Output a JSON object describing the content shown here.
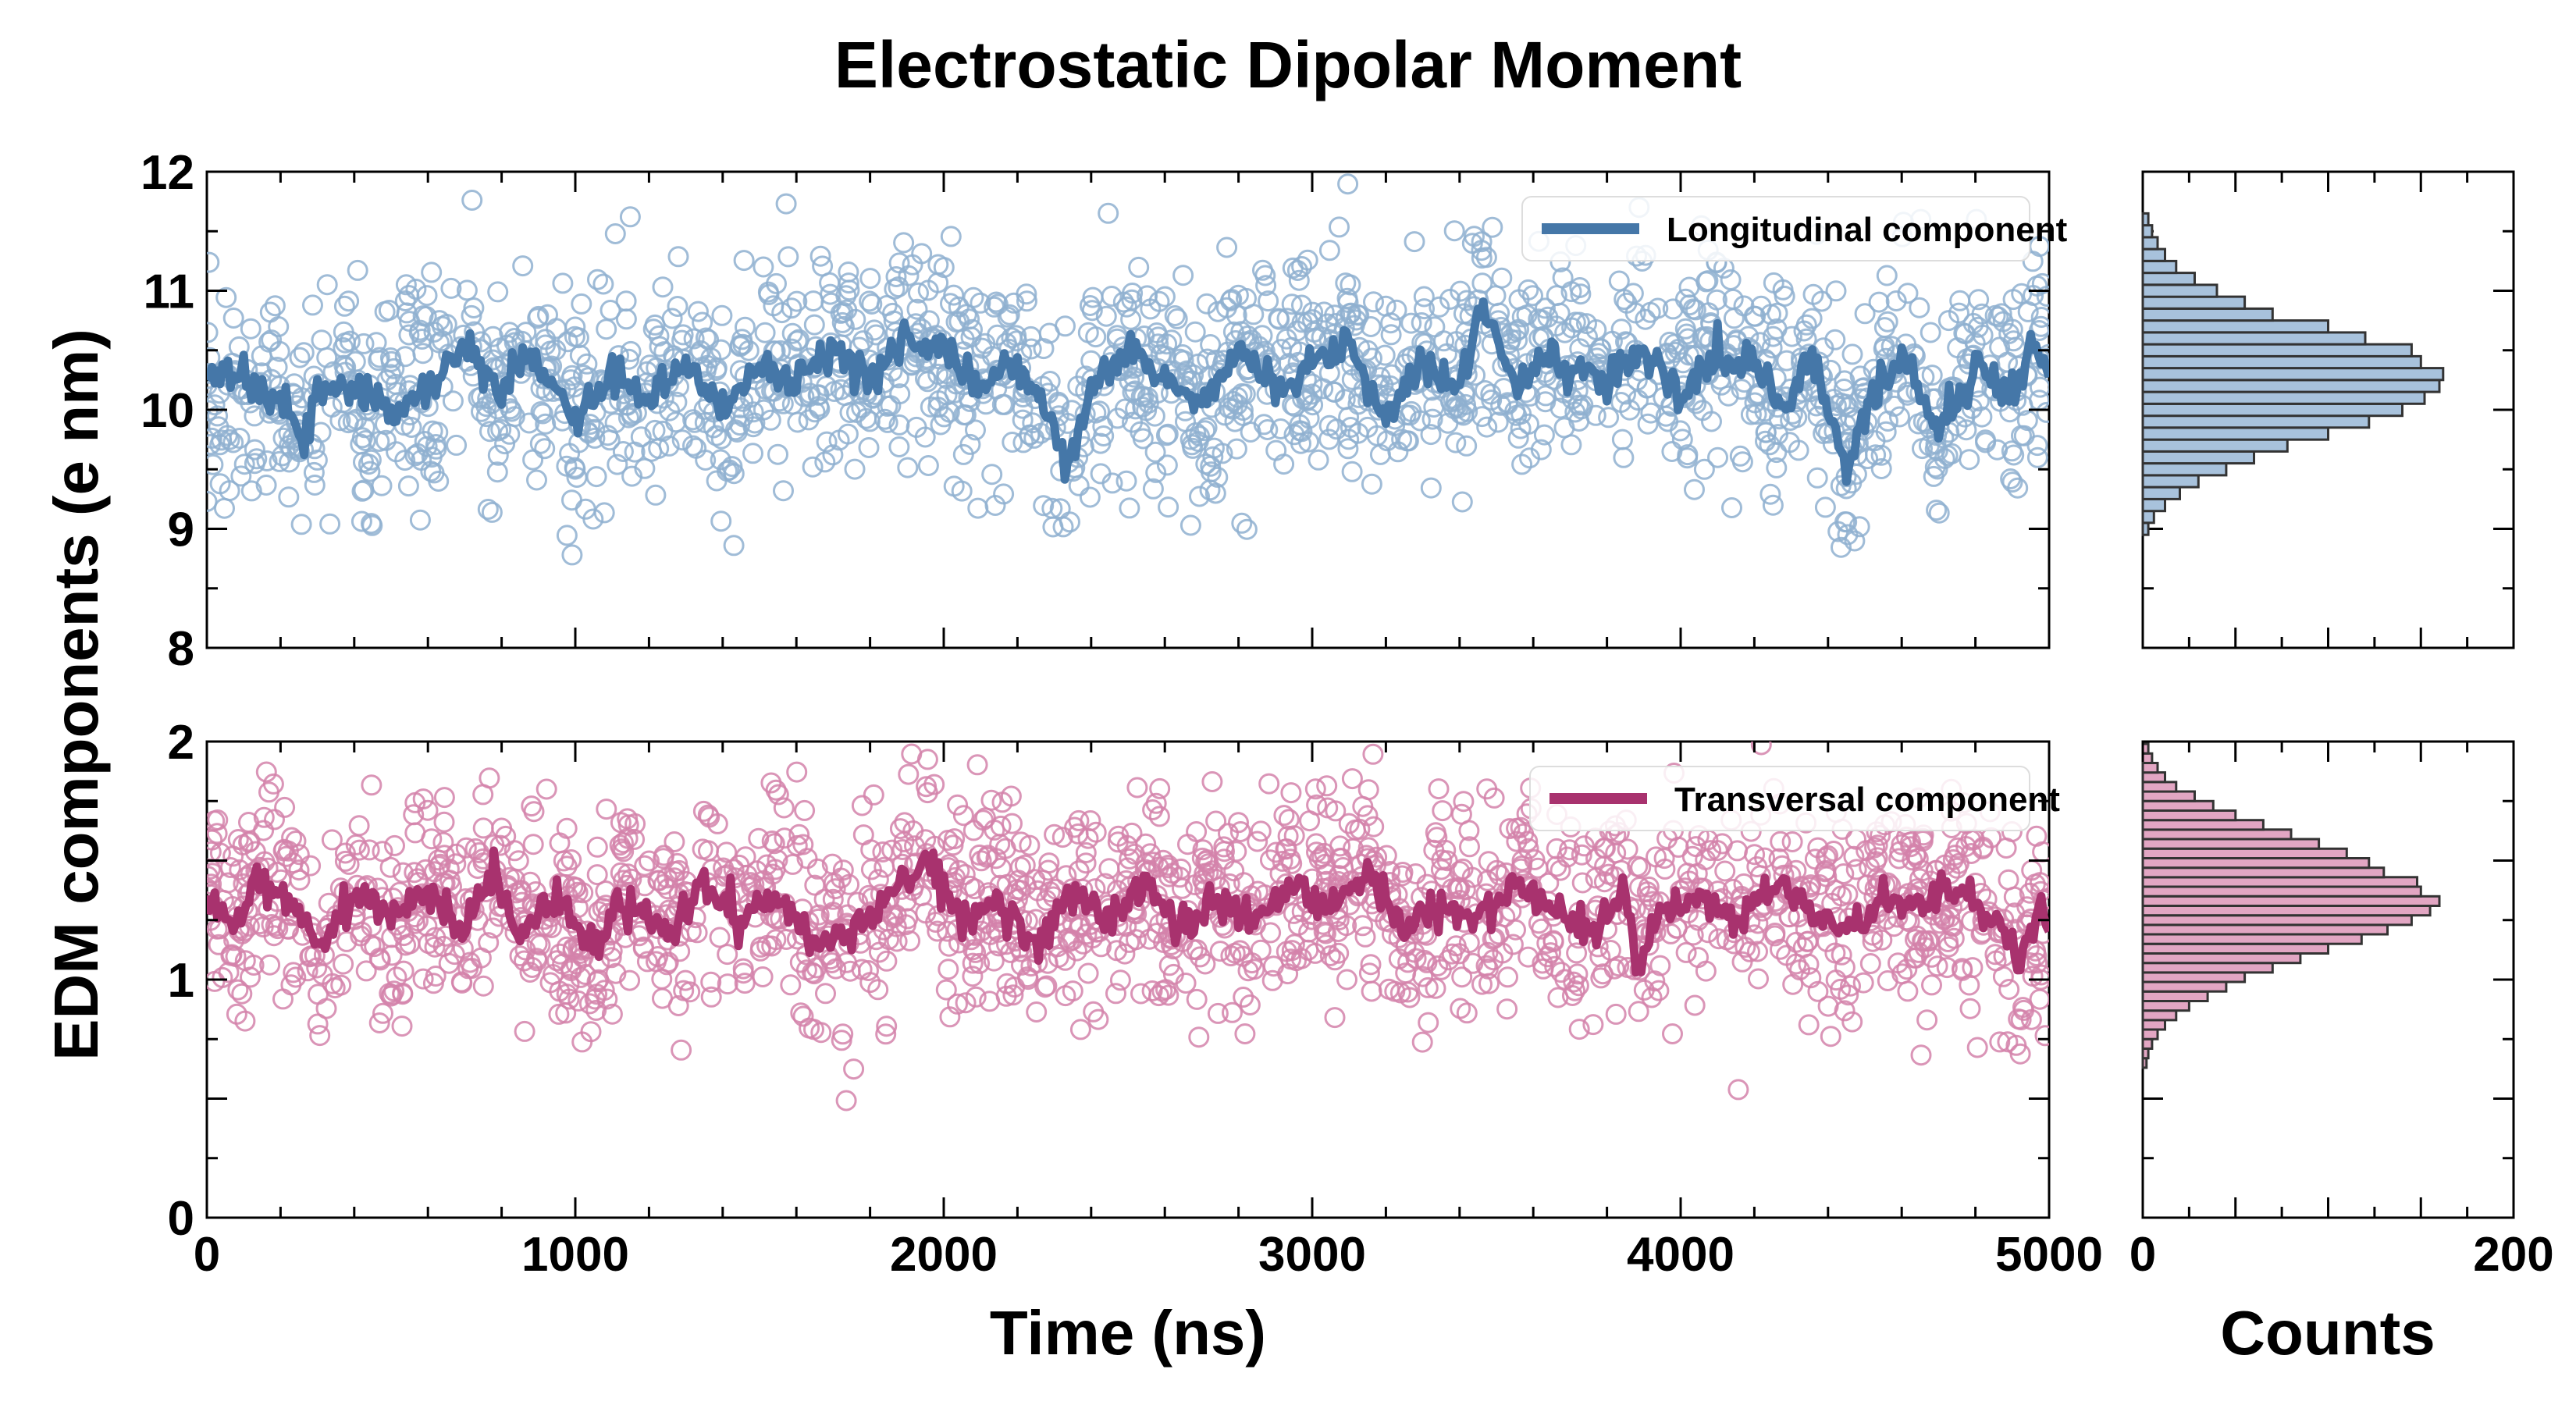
{
  "chart_data": {
    "title": "Electrostatic Dipolar Moment",
    "ylabel": "EDM components (e nm)",
    "xlabel": "Time (ns)",
    "hist_xlabel": "Counts",
    "xlim": [
      0,
      5000
    ],
    "xticks": [
      0,
      1000,
      2000,
      3000,
      4000,
      5000
    ],
    "hist_xlim": [
      0,
      200
    ],
    "hist_xticks": [
      0,
      200
    ],
    "panels": [
      {
        "id": "longitudinal",
        "type": "scatter+line",
        "ylim": [
          8,
          12
        ],
        "yticks": [
          8,
          9,
          10,
          11,
          12
        ],
        "legend": "Longitudinal component",
        "legend_position": "top-right",
        "color": "#4577a8",
        "marker_color": "#8fb0d0",
        "hist_fill": "#a8c2dc",
        "mean": 10.25,
        "scatter_sd": 0.45,
        "trend_points": [
          [
            0,
            10.25
          ],
          [
            100,
            10.3
          ],
          [
            200,
            10.05
          ],
          [
            260,
            9.75
          ],
          [
            300,
            10.1
          ],
          [
            400,
            10.25
          ],
          [
            500,
            9.95
          ],
          [
            600,
            10.2
          ],
          [
            700,
            10.55
          ],
          [
            800,
            10.1
          ],
          [
            860,
            10.5
          ],
          [
            950,
            10.2
          ],
          [
            1000,
            9.9
          ],
          [
            1100,
            10.3
          ],
          [
            1200,
            10.1
          ],
          [
            1300,
            10.4
          ],
          [
            1400,
            10.0
          ],
          [
            1500,
            10.35
          ],
          [
            1600,
            10.2
          ],
          [
            1700,
            10.5
          ],
          [
            1800,
            10.25
          ],
          [
            1900,
            10.6
          ],
          [
            2000,
            10.5
          ],
          [
            2100,
            10.15
          ],
          [
            2200,
            10.4
          ],
          [
            2280,
            10.0
          ],
          [
            2330,
            9.5
          ],
          [
            2400,
            10.2
          ],
          [
            2500,
            10.5
          ],
          [
            2600,
            10.3
          ],
          [
            2700,
            10.05
          ],
          [
            2800,
            10.45
          ],
          [
            2900,
            10.2
          ],
          [
            3000,
            10.35
          ],
          [
            3100,
            10.6
          ],
          [
            3200,
            10.0
          ],
          [
            3300,
            10.4
          ],
          [
            3400,
            10.2
          ],
          [
            3460,
            10.9
          ],
          [
            3550,
            10.2
          ],
          [
            3650,
            10.5
          ],
          [
            3700,
            10.3
          ],
          [
            3800,
            10.25
          ],
          [
            3900,
            10.55
          ],
          [
            4000,
            10.1
          ],
          [
            4100,
            10.5
          ],
          [
            4200,
            10.3
          ],
          [
            4300,
            10.1
          ],
          [
            4350,
            10.5
          ],
          [
            4450,
            9.5
          ],
          [
            4500,
            10.0
          ],
          [
            4600,
            10.5
          ],
          [
            4700,
            9.8
          ],
          [
            4800,
            10.4
          ],
          [
            4900,
            10.1
          ],
          [
            4950,
            10.55
          ],
          [
            5000,
            10.35
          ]
        ],
        "histogram": {
          "bin_edges": [
            8.95,
            9.05,
            9.15,
            9.25,
            9.35,
            9.45,
            9.55,
            9.65,
            9.75,
            9.85,
            9.95,
            10.05,
            10.15,
            10.25,
            10.35,
            10.45,
            10.55,
            10.65,
            10.75,
            10.85,
            10.95,
            11.05,
            11.15,
            11.25,
            11.35,
            11.45,
            11.55,
            11.65
          ],
          "counts": [
            3,
            6,
            12,
            20,
            30,
            45,
            60,
            78,
            100,
            122,
            140,
            152,
            160,
            162,
            150,
            145,
            120,
            100,
            70,
            55,
            40,
            28,
            18,
            12,
            8,
            5,
            3
          ]
        }
      },
      {
        "id": "transversal",
        "type": "scatter+line",
        "ylim": [
          0,
          2
        ],
        "yticks": [
          0,
          1,
          2
        ],
        "legend": "Transversal component",
        "legend_position": "top-right",
        "color": "#a8326e",
        "marker_color": "#d382aa",
        "hist_fill": "#e2a6c3",
        "mean": 1.3,
        "scatter_sd": 0.22,
        "trend_points": [
          [
            0,
            1.35
          ],
          [
            80,
            1.2
          ],
          [
            150,
            1.45
          ],
          [
            250,
            1.3
          ],
          [
            300,
            1.1
          ],
          [
            400,
            1.35
          ],
          [
            500,
            1.25
          ],
          [
            600,
            1.4
          ],
          [
            700,
            1.2
          ],
          [
            780,
            1.45
          ],
          [
            850,
            1.2
          ],
          [
            950,
            1.35
          ],
          [
            1050,
            1.15
          ],
          [
            1150,
            1.35
          ],
          [
            1250,
            1.2
          ],
          [
            1350,
            1.4
          ],
          [
            1450,
            1.25
          ],
          [
            1550,
            1.35
          ],
          [
            1650,
            1.15
          ],
          [
            1750,
            1.2
          ],
          [
            1850,
            1.35
          ],
          [
            1950,
            1.5
          ],
          [
            2050,
            1.25
          ],
          [
            2150,
            1.35
          ],
          [
            2250,
            1.15
          ],
          [
            2350,
            1.35
          ],
          [
            2450,
            1.25
          ],
          [
            2550,
            1.4
          ],
          [
            2650,
            1.2
          ],
          [
            2750,
            1.35
          ],
          [
            2850,
            1.25
          ],
          [
            2950,
            1.4
          ],
          [
            3050,
            1.3
          ],
          [
            3150,
            1.45
          ],
          [
            3250,
            1.2
          ],
          [
            3350,
            1.35
          ],
          [
            3450,
            1.25
          ],
          [
            3550,
            1.4
          ],
          [
            3650,
            1.3
          ],
          [
            3750,
            1.2
          ],
          [
            3850,
            1.35
          ],
          [
            3880,
            1.05
          ],
          [
            3950,
            1.3
          ],
          [
            4050,
            1.35
          ],
          [
            4150,
            1.25
          ],
          [
            4250,
            1.4
          ],
          [
            4350,
            1.3
          ],
          [
            4450,
            1.2
          ],
          [
            4550,
            1.35
          ],
          [
            4650,
            1.3
          ],
          [
            4750,
            1.4
          ],
          [
            4850,
            1.25
          ],
          [
            4920,
            1.1
          ],
          [
            4970,
            1.3
          ],
          [
            5000,
            1.25
          ]
        ],
        "histogram": {
          "bin_edges": [
            0.63,
            0.67,
            0.71,
            0.75,
            0.79,
            0.83,
            0.87,
            0.91,
            0.95,
            0.99,
            1.03,
            1.07,
            1.11,
            1.15,
            1.19,
            1.23,
            1.27,
            1.31,
            1.35,
            1.39,
            1.43,
            1.47,
            1.51,
            1.55,
            1.59,
            1.63,
            1.67,
            1.71,
            1.75,
            1.79,
            1.83,
            1.87,
            1.91,
            1.95,
            1.99
          ],
          "counts": [
            2,
            3,
            5,
            8,
            12,
            18,
            25,
            35,
            45,
            55,
            70,
            85,
            100,
            118,
            132,
            145,
            155,
            160,
            150,
            148,
            130,
            122,
            110,
            95,
            80,
            65,
            50,
            38,
            28,
            18,
            12,
            8,
            5,
            3
          ]
        }
      }
    ]
  }
}
